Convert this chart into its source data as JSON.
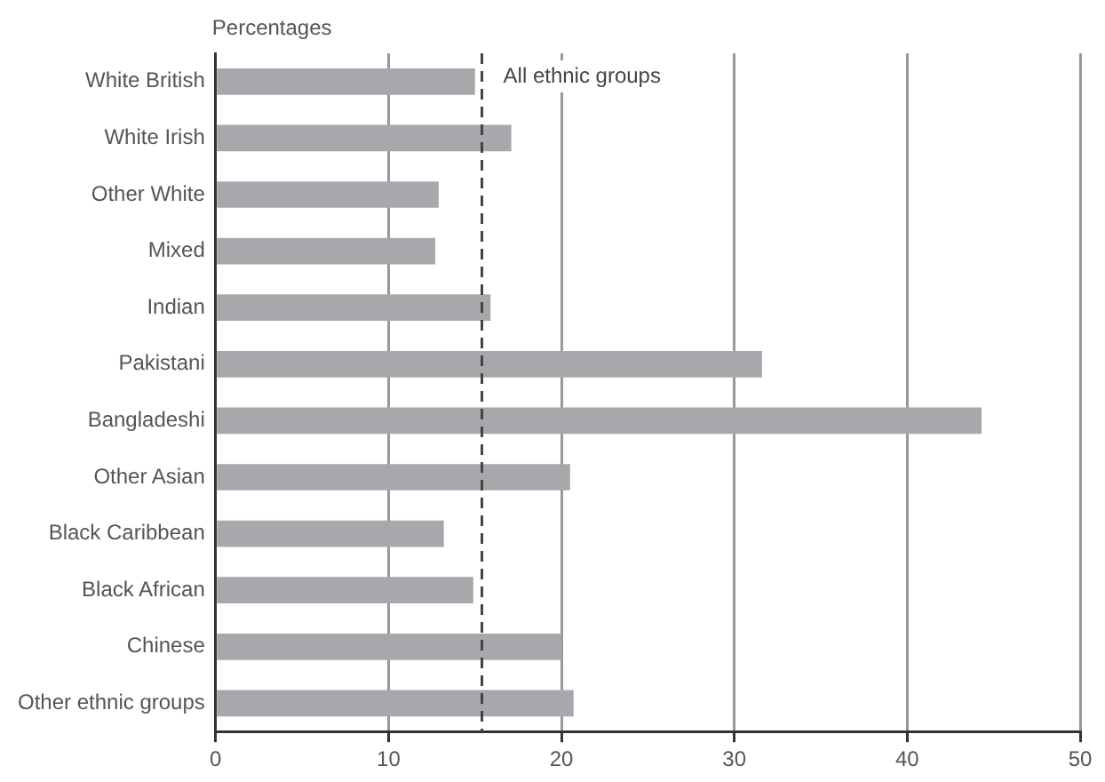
{
  "chart_data": {
    "type": "bar",
    "orientation": "horizontal",
    "xlabel": "Percentages",
    "categories": [
      "White British",
      "White Irish",
      "Other White",
      "Mixed",
      "Indian",
      "Pakistani",
      "Bangladeshi",
      "Other Asian",
      "Black Caribbean",
      "Black African",
      "Chinese",
      "Other ethnic groups"
    ],
    "values": [
      15.0,
      17.1,
      12.9,
      12.7,
      15.9,
      31.6,
      44.3,
      20.5,
      13.2,
      14.9,
      20.0,
      20.7
    ],
    "color": "#a7a8ab",
    "xlim": [
      0,
      50
    ],
    "xticks": [
      0,
      10,
      20,
      30,
      40,
      50
    ],
    "grid": "x",
    "legend": false,
    "ref_lines": [
      {
        "axis": "x",
        "value": 15.4,
        "label": "All ethnic groups",
        "color": "#444444",
        "line_style": "dashed"
      }
    ]
  }
}
